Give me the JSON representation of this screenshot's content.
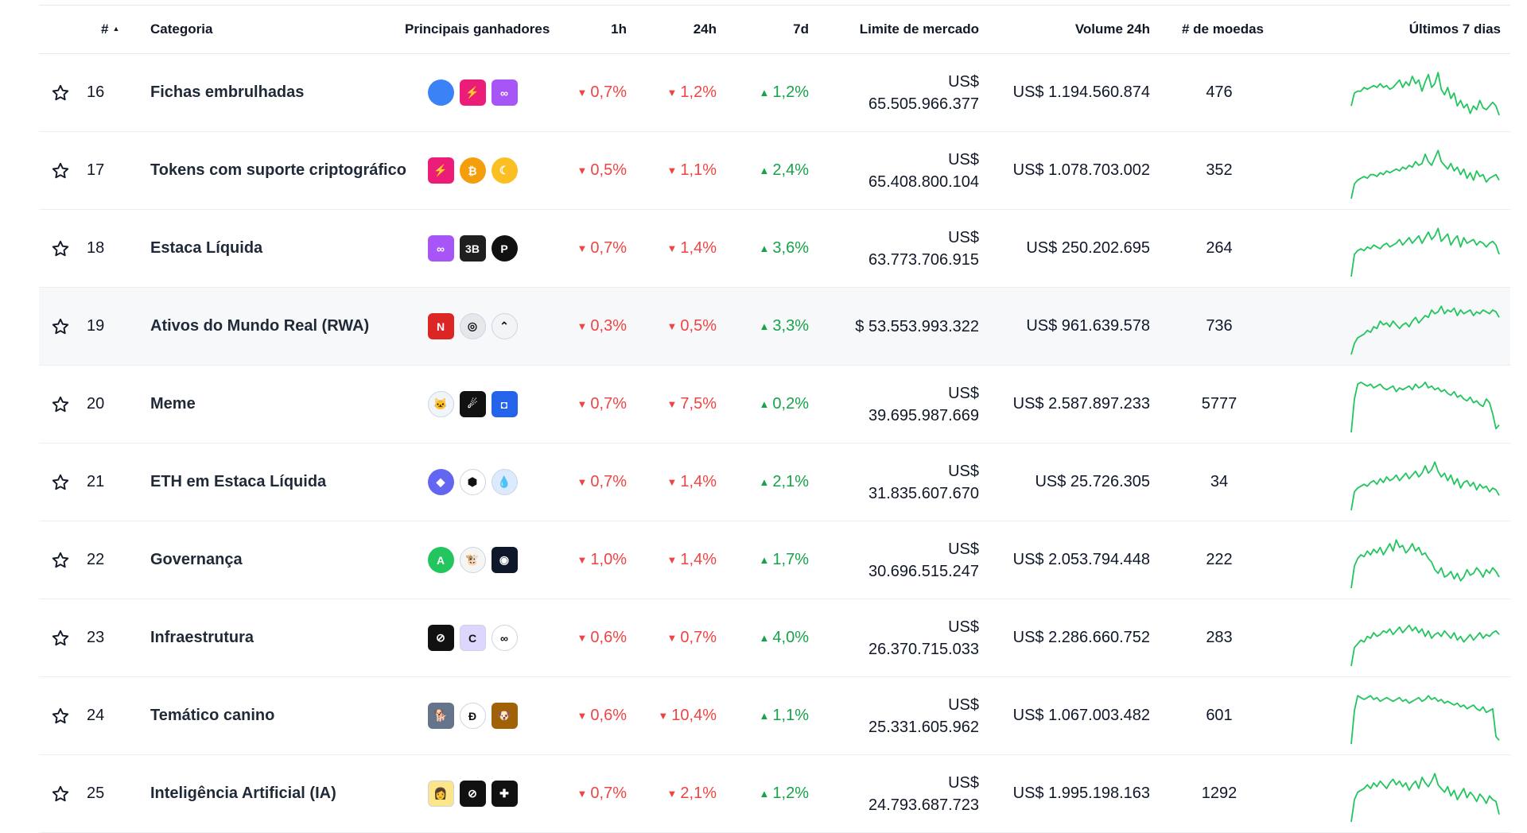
{
  "header": {
    "rank": "#",
    "category": "Categoria",
    "top_gainers": "Principais ganhadores",
    "h1": "1h",
    "h24": "24h",
    "d7": "7d",
    "market_cap": "Limite de mercado",
    "volume": "Volume 24h",
    "num_coins": "# de moedas",
    "last7": "Últimos 7 dias"
  },
  "colors": {
    "down": "#ef4444",
    "up": "#16a34a",
    "spark": "#22c55e"
  },
  "rows": [
    {
      "rank": "16",
      "name": "Fichas embrulhadas",
      "h1": "0,7%",
      "h1_dir": "down",
      "h24": "1,2%",
      "h24_dir": "down",
      "d7": "1,2%",
      "d7_dir": "up",
      "mcap_prefix": "US$",
      "mcap_value": "65.505.966.377",
      "volume": "US$ 1.194.560.874",
      "coins": "476",
      "icons": [
        {
          "name": "blue-orb-icon",
          "shape": "circle",
          "bg": "#3b82f6",
          "text": ""
        },
        {
          "name": "lightning-icon",
          "shape": "sq",
          "bg": "#ec1d78",
          "text": "⚡"
        },
        {
          "name": "infinity-icon",
          "shape": "sq",
          "bg": "#a855f7",
          "text": "∞"
        }
      ],
      "spark": [
        22,
        15,
        14,
        14,
        12,
        13,
        12,
        11,
        12,
        10,
        12,
        11,
        13,
        12,
        10,
        8,
        12,
        9,
        11,
        6,
        10,
        8,
        14,
        9,
        5,
        12,
        10,
        4,
        13,
        16,
        12,
        18,
        15,
        22,
        19,
        23,
        21,
        26,
        22,
        24,
        19,
        23,
        24,
        22,
        20,
        22,
        27
      ]
    },
    {
      "rank": "17",
      "name": "Tokens com suporte criptográfico",
      "h1": "0,5%",
      "h1_dir": "down",
      "h24": "1,1%",
      "h24_dir": "down",
      "d7": "2,4%",
      "d7_dir": "up",
      "mcap_prefix": "US$",
      "mcap_value": "65.408.800.104",
      "volume": "US$ 1.078.703.002",
      "coins": "352",
      "icons": [
        {
          "name": "lightning-icon",
          "shape": "sq",
          "bg": "#ec1d78",
          "text": "⚡"
        },
        {
          "name": "bitcoin-icon",
          "shape": "circle",
          "bg": "#f59e0b",
          "text": "₿"
        },
        {
          "name": "crescent-icon",
          "shape": "circle",
          "bg": "#fbbf24",
          "text": "☾"
        }
      ],
      "spark": [
        30,
        22,
        20,
        19,
        18,
        19,
        17,
        17,
        18,
        16,
        17,
        15,
        16,
        15,
        14,
        15,
        13,
        14,
        12,
        13,
        10,
        12,
        11,
        6,
        10,
        12,
        8,
        4,
        10,
        12,
        14,
        11,
        15,
        13,
        17,
        14,
        19,
        16,
        20,
        15,
        18,
        17,
        21,
        19,
        18,
        17,
        20
      ]
    },
    {
      "rank": "18",
      "name": "Estaca Líquida",
      "h1": "0,7%",
      "h1_dir": "down",
      "h24": "1,4%",
      "h24_dir": "down",
      "d7": "3,6%",
      "d7_dir": "up",
      "mcap_prefix": "US$",
      "mcap_value": "63.773.706.915",
      "volume": "US$ 250.202.695",
      "coins": "264",
      "icons": [
        {
          "name": "infinity-icon",
          "shape": "sq",
          "bg": "#a855f7",
          "text": "∞"
        },
        {
          "name": "3b-token-icon",
          "shape": "sq",
          "bg": "#1f1f1f",
          "text": "3B"
        },
        {
          "name": "p-token-icon",
          "shape": "circle",
          "bg": "#111111",
          "text": "P"
        }
      ],
      "spark": [
        30,
        18,
        16,
        15,
        16,
        14,
        15,
        13,
        14,
        15,
        13,
        12,
        14,
        13,
        12,
        10,
        13,
        11,
        9,
        12,
        10,
        8,
        12,
        9,
        6,
        10,
        8,
        4,
        11,
        9,
        7,
        13,
        10,
        8,
        14,
        9,
        12,
        11,
        10,
        13,
        11,
        12,
        14,
        12,
        11,
        13,
        18
      ]
    },
    {
      "rank": "19",
      "name": "Ativos do Mundo Real (RWA)",
      "highlight": true,
      "h1": "0,3%",
      "h1_dir": "down",
      "h24": "0,5%",
      "h24_dir": "down",
      "d7": "3,3%",
      "d7_dir": "up",
      "mcap_prefix": "",
      "mcap_value": "$ 53.553.993.322",
      "volume": "US$ 961.639.578",
      "coins": "736",
      "icons": [
        {
          "name": "n-token-icon",
          "shape": "sq",
          "bg": "#dc2626",
          "text": "N"
        },
        {
          "name": "ring-token-icon",
          "shape": "circle",
          "bg": "#e5e7eb",
          "text": "◎"
        },
        {
          "name": "chevron-token-icon",
          "shape": "circle",
          "bg": "#f3f4f6",
          "text": "⌃"
        }
      ],
      "spark": [
        30,
        24,
        21,
        20,
        19,
        17,
        18,
        15,
        16,
        12,
        14,
        13,
        15,
        12,
        14,
        16,
        14,
        13,
        15,
        12,
        10,
        13,
        11,
        9,
        10,
        6,
        8,
        7,
        4,
        8,
        6,
        7,
        5,
        9,
        6,
        8,
        7,
        6,
        9,
        7,
        8,
        6,
        7,
        8,
        6,
        7,
        10
      ]
    },
    {
      "rank": "20",
      "name": "Meme",
      "h1": "0,7%",
      "h1_dir": "down",
      "h24": "7,5%",
      "h24_dir": "down",
      "d7": "0,2%",
      "d7_dir": "up",
      "mcap_prefix": "US$",
      "mcap_value": "39.695.987.669",
      "volume": "US$ 2.587.897.233",
      "coins": "5777",
      "icons": [
        {
          "name": "flag-cat-icon",
          "shape": "circle",
          "bg": "#f1f5f9",
          "text": "🐱"
        },
        {
          "name": "comet-icon",
          "shape": "sq",
          "bg": "#111111",
          "text": "☄"
        },
        {
          "name": "square-ring-icon",
          "shape": "sq",
          "bg": "#2563eb",
          "text": "◘"
        }
      ],
      "spark": [
        30,
        12,
        4,
        3,
        4,
        5,
        4,
        6,
        5,
        4,
        6,
        7,
        6,
        5,
        8,
        6,
        7,
        6,
        5,
        7,
        4,
        6,
        5,
        3,
        6,
        5,
        7,
        6,
        8,
        7,
        9,
        10,
        8,
        11,
        10,
        12,
        13,
        11,
        14,
        13,
        15,
        16,
        12,
        14,
        20,
        28,
        26
      ]
    },
    {
      "rank": "21",
      "name": "ETH em Estaca Líquida",
      "h1": "0,7%",
      "h1_dir": "down",
      "h24": "1,4%",
      "h24_dir": "down",
      "d7": "2,1%",
      "d7_dir": "up",
      "mcap_prefix": "US$",
      "mcap_value": "31.835.607.670",
      "volume": "US$ 25.726.305",
      "coins": "34",
      "icons": [
        {
          "name": "ethereum-icon",
          "shape": "circle",
          "bg": "#6366f1",
          "text": "◆"
        },
        {
          "name": "shield-token-icon",
          "shape": "circle",
          "bg": "#ffffff",
          "text": "⬢"
        },
        {
          "name": "drop-token-icon",
          "shape": "circle",
          "bg": "#dbeafe",
          "text": "💧"
        }
      ],
      "spark": [
        30,
        20,
        18,
        17,
        16,
        17,
        15,
        14,
        16,
        13,
        15,
        12,
        14,
        13,
        11,
        14,
        12,
        10,
        13,
        11,
        9,
        12,
        10,
        6,
        10,
        8,
        4,
        9,
        12,
        10,
        14,
        11,
        16,
        13,
        18,
        15,
        14,
        17,
        15,
        19,
        16,
        18,
        17,
        20,
        18,
        19,
        22
      ]
    },
    {
      "rank": "22",
      "name": "Governança",
      "h1": "1,0%",
      "h1_dir": "down",
      "h24": "1,4%",
      "h24_dir": "down",
      "d7": "1,7%",
      "d7_dir": "up",
      "mcap_prefix": "US$",
      "mcap_value": "30.696.515.247",
      "volume": "US$ 2.053.794.448",
      "coins": "222",
      "icons": [
        {
          "name": "a-token-icon",
          "shape": "circle",
          "bg": "#22c55e",
          "text": "A"
        },
        {
          "name": "cow-token-icon",
          "shape": "circle",
          "bg": "#f5f5f4",
          "text": "🐮"
        },
        {
          "name": "blue-square-token-icon",
          "shape": "sq",
          "bg": "#0f172a",
          "text": "◉"
        }
      ],
      "spark": [
        30,
        18,
        14,
        12,
        13,
        10,
        12,
        9,
        11,
        8,
        12,
        9,
        6,
        10,
        4,
        8,
        7,
        11,
        9,
        6,
        10,
        8,
        12,
        11,
        14,
        16,
        20,
        22,
        19,
        24,
        23,
        21,
        25,
        22,
        26,
        24,
        20,
        23,
        22,
        19,
        21,
        24,
        20,
        22,
        19,
        21,
        24
      ]
    },
    {
      "rank": "23",
      "name": "Infraestrutura",
      "h1": "0,6%",
      "h1_dir": "down",
      "h24": "0,7%",
      "h24_dir": "down",
      "d7": "4,0%",
      "d7_dir": "up",
      "mcap_prefix": "US$",
      "mcap_value": "26.370.715.033",
      "volume": "US$ 2.286.660.752",
      "coins": "283",
      "icons": [
        {
          "name": "link-token-icon",
          "shape": "sq",
          "bg": "#111111",
          "text": "⊘"
        },
        {
          "name": "c-token-icon",
          "shape": "sq",
          "bg": "#ddd6fe",
          "text": "C"
        },
        {
          "name": "oc-token-icon",
          "shape": "circle",
          "bg": "#ffffff",
          "text": "∞"
        }
      ],
      "spark": [
        30,
        20,
        18,
        16,
        17,
        14,
        15,
        12,
        14,
        13,
        11,
        12,
        10,
        13,
        11,
        9,
        12,
        10,
        8,
        11,
        9,
        12,
        10,
        14,
        11,
        15,
        13,
        12,
        14,
        11,
        13,
        15,
        12,
        16,
        14,
        17,
        15,
        13,
        16,
        14,
        12,
        15,
        13,
        14,
        12,
        11,
        13
      ]
    },
    {
      "rank": "24",
      "name": "Temático canino",
      "h1": "0,6%",
      "h1_dir": "down",
      "h24": "10,4%",
      "h24_dir": "down",
      "d7": "1,1%",
      "d7_dir": "up",
      "mcap_prefix": "US$",
      "mcap_value": "25.331.605.962",
      "volume": "US$ 1.067.003.482",
      "coins": "601",
      "icons": [
        {
          "name": "dog-photo-icon",
          "shape": "sq",
          "bg": "#64748b",
          "text": "🐕"
        },
        {
          "name": "d-token-icon",
          "shape": "circle",
          "bg": "#ffffff",
          "text": "Ð"
        },
        {
          "name": "dog-token-icon",
          "shape": "sq",
          "bg": "#a16207",
          "text": "🐶"
        }
      ],
      "spark": [
        30,
        12,
        4,
        5,
        6,
        5,
        4,
        6,
        5,
        7,
        6,
        5,
        6,
        7,
        6,
        5,
        7,
        6,
        8,
        7,
        6,
        5,
        7,
        6,
        4,
        6,
        5,
        7,
        6,
        8,
        7,
        8,
        9,
        8,
        10,
        9,
        11,
        10,
        9,
        11,
        12,
        10,
        13,
        12,
        11,
        26,
        28
      ]
    },
    {
      "rank": "25",
      "name": "Inteligência Artificial (IA)",
      "h1": "0,7%",
      "h1_dir": "down",
      "h24": "2,1%",
      "h24_dir": "down",
      "d7": "1,2%",
      "d7_dir": "up",
      "mcap_prefix": "US$",
      "mcap_value": "24.793.687.723",
      "volume": "US$ 1.995.198.163",
      "coins": "1292",
      "icons": [
        {
          "name": "avatar-token-icon",
          "shape": "sq",
          "bg": "#fde68a",
          "text": "👩"
        },
        {
          "name": "link-token-icon",
          "shape": "sq",
          "bg": "#111111",
          "text": "⊘"
        },
        {
          "name": "puzzle-token-icon",
          "shape": "sq",
          "bg": "#111111",
          "text": "✚"
        }
      ],
      "spark": [
        30,
        18,
        14,
        13,
        12,
        10,
        12,
        9,
        11,
        8,
        10,
        12,
        9,
        7,
        10,
        8,
        11,
        9,
        13,
        10,
        8,
        12,
        6,
        9,
        11,
        8,
        4,
        10,
        12,
        14,
        11,
        16,
        13,
        18,
        15,
        12,
        17,
        14,
        16,
        19,
        15,
        17,
        20,
        16,
        18,
        19,
        26
      ]
    }
  ]
}
